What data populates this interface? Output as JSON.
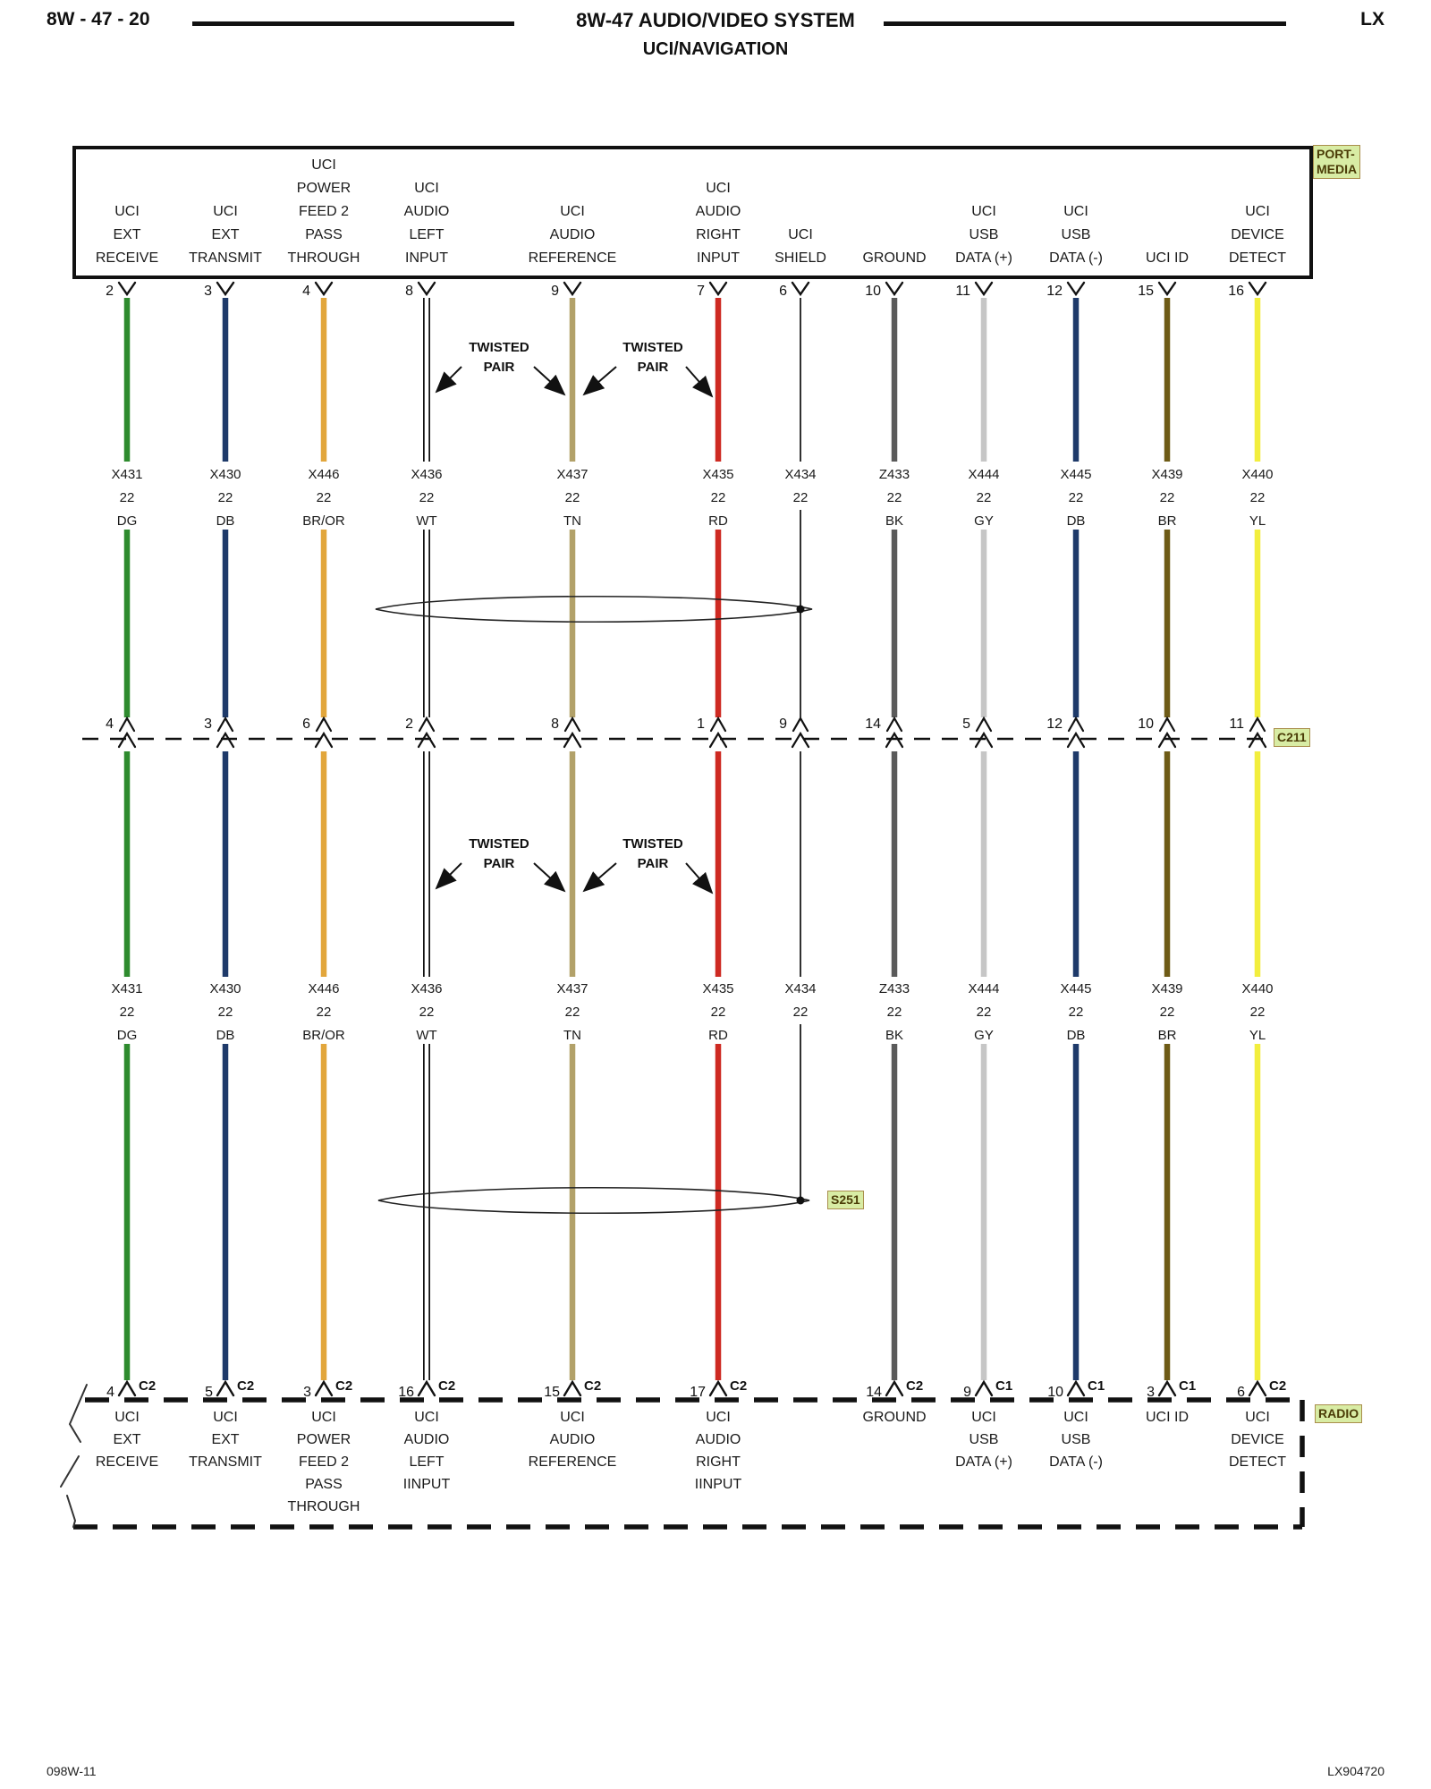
{
  "header": {
    "page_ref": "8W - 47 - 20",
    "title": "8W-47 AUDIO/VIDEO SYSTEM",
    "subtitle": "UCI/NAVIGATION",
    "code": "LX"
  },
  "footer": {
    "left": "098W-11",
    "right": "LX904720"
  },
  "labels": {
    "port_media_line1": "PORT-",
    "port_media_line2": "MEDIA",
    "radio": "RADIO",
    "inline_connector": "C211",
    "splice": "S251"
  },
  "twisted_pair_label": [
    "TWISTED",
    "PAIR"
  ],
  "highlight_colors": {
    "bg": "#D8ECA4",
    "border": "#A98E4C",
    "text": "#4A3B06"
  },
  "columns": [
    {
      "top_pin": "2",
      "top_label": [
        "UCI",
        "EXT",
        "RECEIVE"
      ],
      "circuit": [
        "X431",
        "22",
        "DG"
      ],
      "wire_color_hex": "#2E8B2E",
      "wire_style": "solid",
      "c211_pin": "4",
      "bottom_pin": "4",
      "bottom_connector": "C2",
      "bottom_label": [
        "UCI",
        "EXT",
        "RECEIVE"
      ]
    },
    {
      "top_pin": "3",
      "top_label": [
        "UCI",
        "EXT",
        "TRANSMIT"
      ],
      "circuit": [
        "X430",
        "22",
        "DB"
      ],
      "wire_color_hex": "#1E3A6A",
      "wire_style": "solid",
      "c211_pin": "3",
      "bottom_pin": "5",
      "bottom_connector": "C2",
      "bottom_label": [
        "UCI",
        "EXT",
        "TRANSMIT"
      ]
    },
    {
      "top_pin": "4",
      "top_label": [
        "UCI",
        "POWER",
        "FEED 2",
        "PASS",
        "THROUGH"
      ],
      "circuit": [
        "X446",
        "22",
        "BR/OR"
      ],
      "wire_color_hex": "#E2A63B",
      "wire_style": "solid",
      "c211_pin": "6",
      "bottom_pin": "3",
      "bottom_connector": "C2",
      "bottom_label": [
        "UCI",
        "POWER",
        "FEED 2",
        "PASS",
        "THROUGH"
      ]
    },
    {
      "top_pin": "8",
      "top_label": [
        "UCI",
        "AUDIO",
        "LEFT",
        "INPUT"
      ],
      "circuit": [
        "X436",
        "22",
        "WT"
      ],
      "wire_color_hex": "#FFFFFF",
      "wire_style": "outline",
      "c211_pin": "2",
      "bottom_pin": "16",
      "bottom_connector": "C2",
      "bottom_label": [
        "UCI",
        "AUDIO",
        "LEFT",
        "IINPUT"
      ]
    },
    {
      "top_pin": "9",
      "top_label": [
        "UCI",
        "AUDIO",
        "REFERENCE"
      ],
      "circuit": [
        "X437",
        "22",
        "TN"
      ],
      "wire_color_hex": "#B2A169",
      "wire_style": "solid",
      "c211_pin": "8",
      "bottom_pin": "15",
      "bottom_connector": "C2",
      "bottom_label": [
        "UCI",
        "AUDIO",
        "REFERENCE"
      ]
    },
    {
      "top_pin": "7",
      "top_label": [
        "UCI",
        "AUDIO",
        "RIGHT",
        "INPUT"
      ],
      "circuit": [
        "X435",
        "22",
        "RD"
      ],
      "wire_color_hex": "#CE2A22",
      "wire_style": "solid",
      "c211_pin": "1",
      "bottom_pin": "17",
      "bottom_connector": "C2",
      "bottom_label": [
        "UCI",
        "AUDIO",
        "RIGHT",
        "IINPUT"
      ]
    },
    {
      "top_pin": "6",
      "top_label": [
        "UCI",
        "SHIELD"
      ],
      "circuit": [
        "X434",
        "22"
      ],
      "wire_color_hex": "#1A1A1A",
      "wire_style": "thin",
      "c211_pin": "9",
      "bottom_pin": null,
      "bottom_connector": null,
      "bottom_label": []
    },
    {
      "top_pin": "10",
      "top_label": [
        "GROUND"
      ],
      "circuit": [
        "Z433",
        "22",
        "BK"
      ],
      "wire_color_hex": "#5A5A5A",
      "wire_style": "solid",
      "c211_pin": "14",
      "bottom_pin": "14",
      "bottom_connector": "C2",
      "bottom_label": [
        "GROUND"
      ]
    },
    {
      "top_pin": "11",
      "top_label": [
        "UCI",
        "USB",
        "DATA (+)"
      ],
      "circuit": [
        "X444",
        "22",
        "GY"
      ],
      "wire_color_hex": "#C6C6C6",
      "wire_style": "solid",
      "c211_pin": "5",
      "bottom_pin": "9",
      "bottom_connector": "C1",
      "bottom_label": [
        "UCI",
        "USB",
        "DATA (+)"
      ]
    },
    {
      "top_pin": "12",
      "top_label": [
        "UCI",
        "USB",
        "DATA (-)"
      ],
      "circuit": [
        "X445",
        "22",
        "DB"
      ],
      "wire_color_hex": "#1E3A6A",
      "wire_style": "solid",
      "c211_pin": "12",
      "bottom_pin": "10",
      "bottom_connector": "C1",
      "bottom_label": [
        "UCI",
        "USB",
        "DATA (-)"
      ]
    },
    {
      "top_pin": "15",
      "top_label": [
        "UCI ID"
      ],
      "circuit": [
        "X439",
        "22",
        "BR"
      ],
      "wire_color_hex": "#6E5B16",
      "wire_style": "solid",
      "c211_pin": "10",
      "bottom_pin": "3",
      "bottom_connector": "C1",
      "bottom_label": [
        "UCI ID"
      ]
    },
    {
      "top_pin": "16",
      "top_label": [
        "UCI",
        "DEVICE",
        "DETECT"
      ],
      "circuit": [
        "X440",
        "22",
        "YL"
      ],
      "wire_color_hex": "#F2EE3E",
      "wire_style": "solid",
      "c211_pin": "11",
      "bottom_pin": "6",
      "bottom_connector": "C2",
      "bottom_label": [
        "UCI",
        "DEVICE",
        "DETECT"
      ]
    }
  ]
}
